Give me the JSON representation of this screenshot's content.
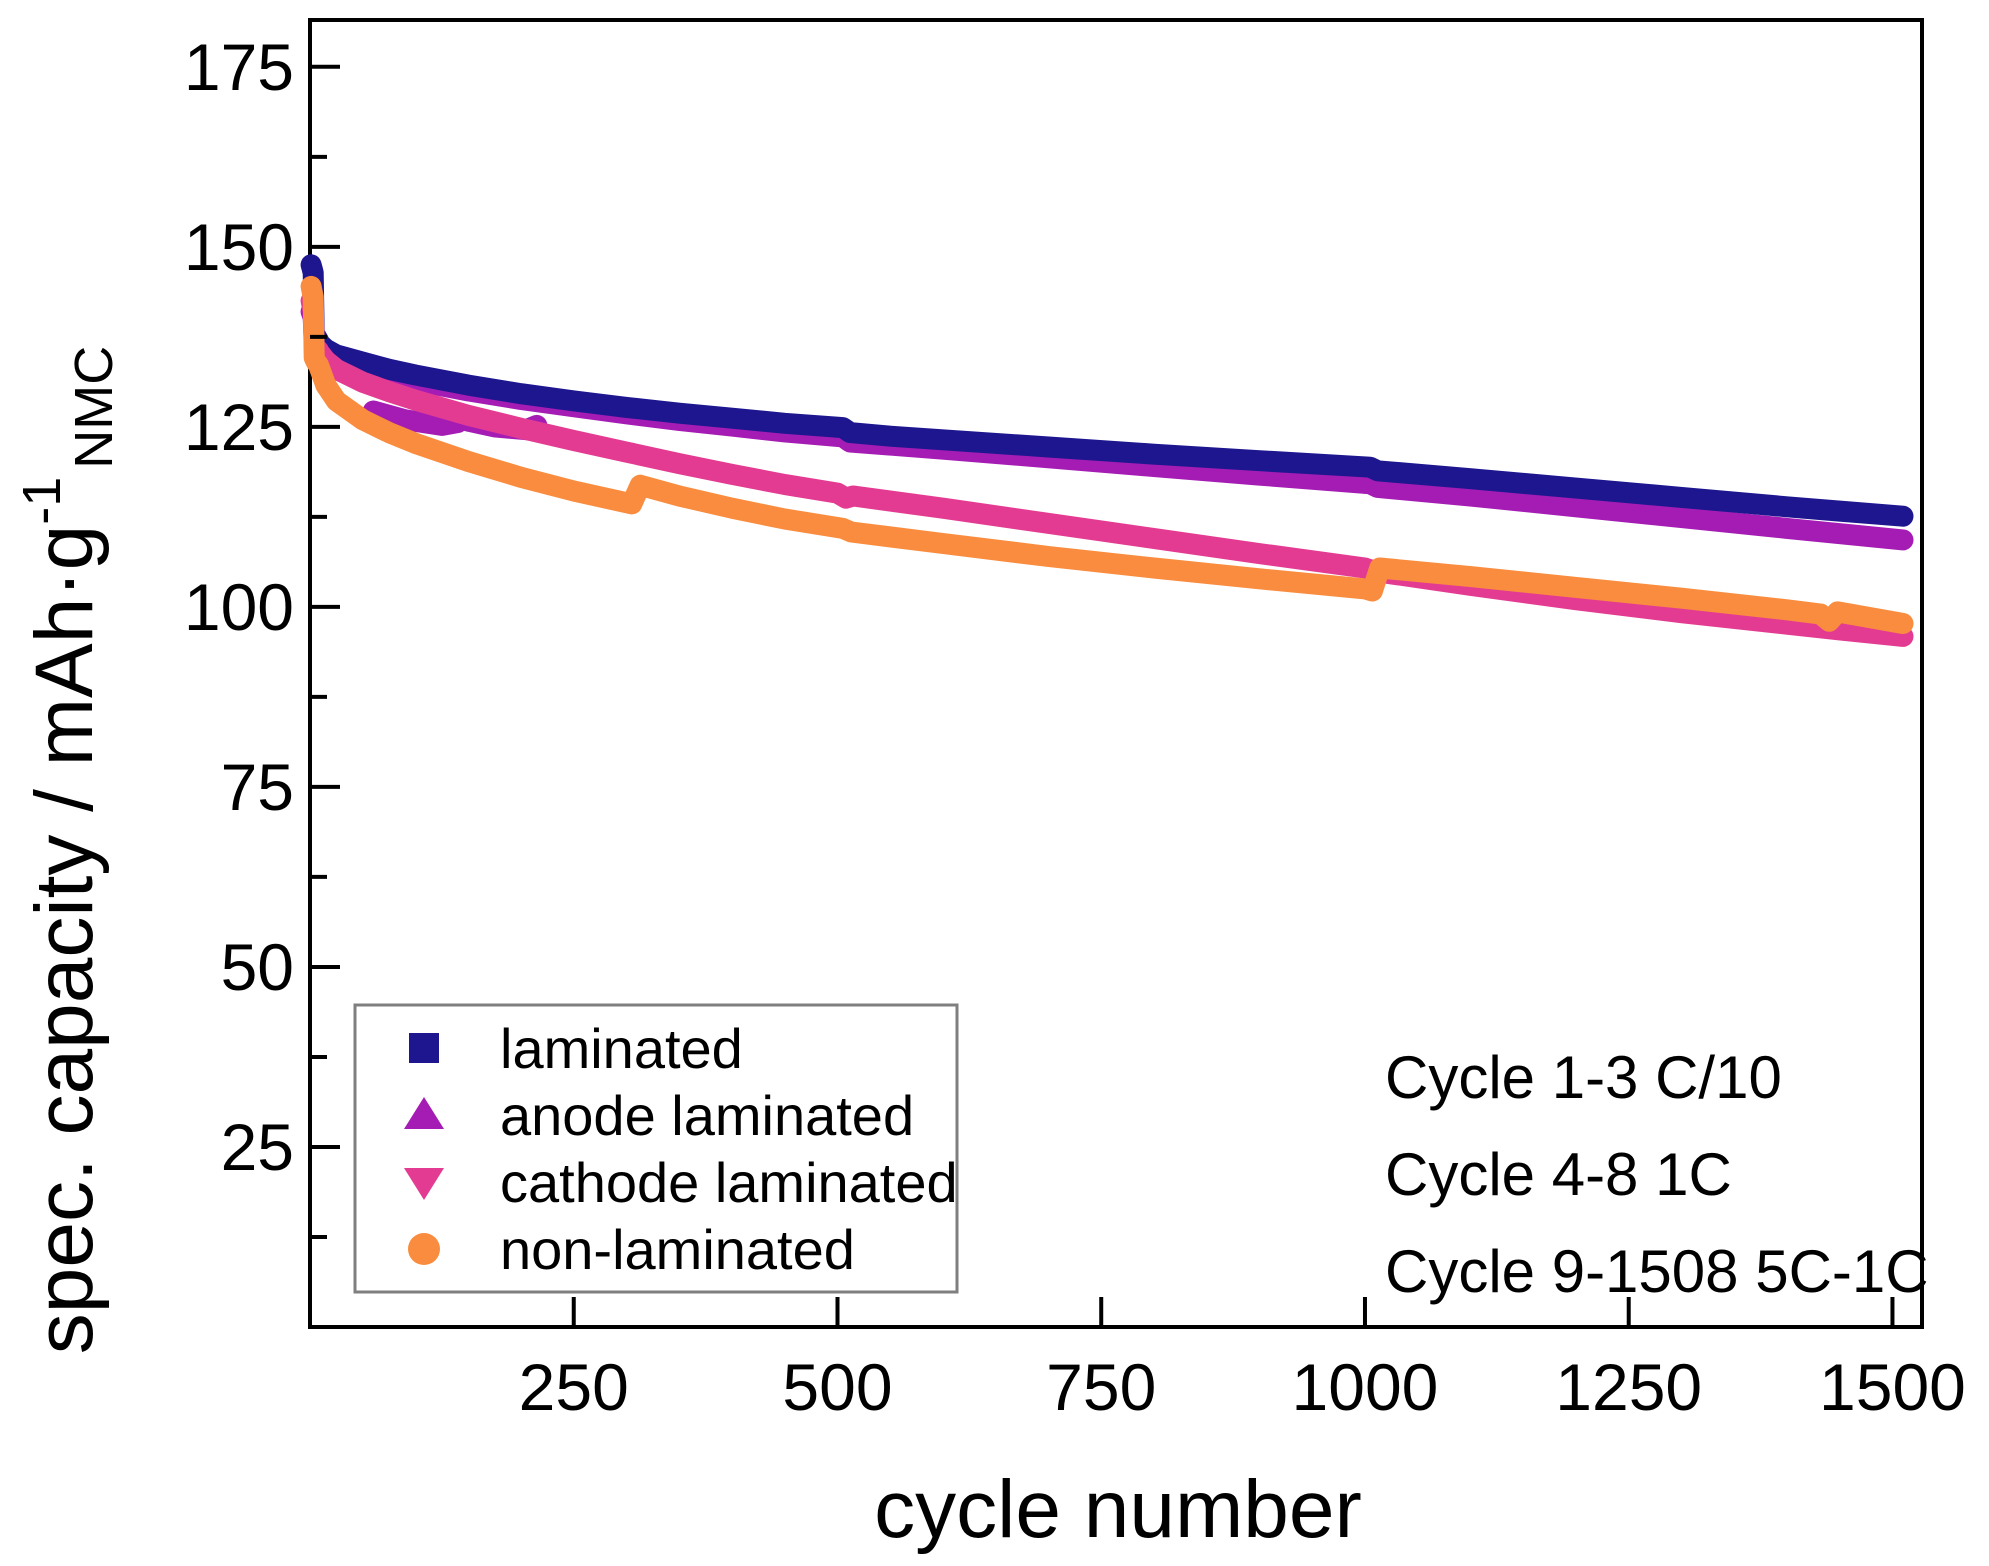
{
  "chart_data": {
    "type": "scatter",
    "title": "",
    "xlabel": "cycle number",
    "ylabel": "spec. capacity / mAh·g⁻¹ NMC",
    "ylabel_main": "spec. capacity / mAh·g",
    "ylabel_sup": "-1",
    "ylabel_sub": "NMC",
    "xlim": [
      0,
      1528
    ],
    "ylim": [
      0,
      181.5
    ],
    "x_ticks": [
      250,
      500,
      750,
      1000,
      1250,
      1500
    ],
    "y_ticks": [
      25,
      50,
      75,
      100,
      125,
      150,
      175
    ],
    "y_minor_tick_step": 12.5,
    "grid": "off",
    "legend_position": "bottom-left",
    "annotations": [
      "Cycle 1-3 C/10",
      "Cycle 4-8 1C",
      "Cycle 9-1508 5C-1C"
    ],
    "axis_color": "#000000",
    "legend_border_color": "#7f7f7f",
    "series": [
      {
        "name": "laminated",
        "marker": "square",
        "color": "#1e168f",
        "points": [
          [
            1,
            147.5
          ],
          [
            2,
            147
          ],
          [
            3,
            146.4
          ],
          [
            4,
            138
          ],
          [
            6,
            137.5
          ],
          [
            8,
            137
          ],
          [
            9,
            136.6
          ],
          [
            15,
            135.8
          ],
          [
            25,
            135
          ],
          [
            50,
            134
          ],
          [
            75,
            133
          ],
          [
            100,
            132.2
          ],
          [
            150,
            130.8
          ],
          [
            200,
            129.6
          ],
          [
            250,
            128.6
          ],
          [
            300,
            127.7
          ],
          [
            350,
            126.9
          ],
          [
            400,
            126.2
          ],
          [
            450,
            125.5
          ],
          [
            505,
            124.9
          ],
          [
            512,
            124.2
          ],
          [
            550,
            123.7
          ],
          [
            600,
            123.2
          ],
          [
            700,
            122.2
          ],
          [
            800,
            121.2
          ],
          [
            900,
            120.3
          ],
          [
            1005,
            119.4
          ],
          [
            1012,
            118.9
          ],
          [
            1100,
            117.8
          ],
          [
            1200,
            116.5
          ],
          [
            1300,
            115.2
          ],
          [
            1400,
            113.9
          ],
          [
            1450,
            113.3
          ],
          [
            1510,
            112.6
          ]
        ]
      },
      {
        "name": "anode laminated",
        "marker": "triangle-up",
        "color": "#a51cb4",
        "points": [
          [
            1,
            141
          ],
          [
            2,
            140.6
          ],
          [
            3,
            140.2
          ],
          [
            4,
            137
          ],
          [
            6,
            136.5
          ],
          [
            8,
            136.1
          ],
          [
            9,
            135.8
          ],
          [
            15,
            135.2
          ],
          [
            25,
            134.4
          ],
          [
            50,
            133.3
          ],
          [
            75,
            132.3
          ],
          [
            100,
            131.4
          ],
          [
            150,
            130
          ],
          [
            200,
            128.8
          ],
          [
            250,
            127.8
          ],
          [
            300,
            126.8
          ],
          [
            350,
            125.9
          ],
          [
            400,
            125.1
          ],
          [
            450,
            124.3
          ],
          [
            505,
            123.6
          ],
          [
            512,
            122.9
          ],
          [
            600,
            121.9
          ],
          [
            700,
            120.7
          ],
          [
            800,
            119.5
          ],
          [
            900,
            118.3
          ],
          [
            1005,
            117.1
          ],
          [
            1012,
            116.6
          ],
          [
            1100,
            115.4
          ],
          [
            1200,
            113.9
          ],
          [
            1300,
            112.4
          ],
          [
            1400,
            110.9
          ],
          [
            1510,
            109.3
          ]
        ],
        "extra_segments": [
          [
            [
              60,
              127.2
            ],
            [
              90,
              126
            ],
            [
              125,
              125.2
            ],
            [
              140,
              125.6
            ]
          ],
          [
            [
              150,
              125.8
            ],
            [
              175,
              125
            ],
            [
              205,
              124.6
            ],
            [
              215,
              125.2
            ]
          ]
        ]
      },
      {
        "name": "cathode laminated",
        "marker": "triangle-down",
        "color": "#e43b92",
        "points": [
          [
            1,
            142.5
          ],
          [
            2,
            141.8
          ],
          [
            3,
            141
          ],
          [
            4,
            136.3
          ],
          [
            6,
            135.9
          ],
          [
            8,
            135.6
          ],
          [
            9,
            135.3
          ],
          [
            15,
            134.2
          ],
          [
            25,
            133
          ],
          [
            50,
            131.2
          ],
          [
            75,
            129.9
          ],
          [
            100,
            128.7
          ],
          [
            150,
            126.6
          ],
          [
            200,
            124.8
          ],
          [
            250,
            123.1
          ],
          [
            300,
            121.5
          ],
          [
            350,
            119.9
          ],
          [
            400,
            118.4
          ],
          [
            450,
            117
          ],
          [
            500,
            115.8
          ],
          [
            508,
            115.1
          ],
          [
            515,
            115.4
          ],
          [
            600,
            113.7
          ],
          [
            700,
            111.6
          ],
          [
            800,
            109.5
          ],
          [
            900,
            107.4
          ],
          [
            1000,
            105.4
          ],
          [
            1010,
            104.9
          ],
          [
            1100,
            103
          ],
          [
            1200,
            101
          ],
          [
            1300,
            99.2
          ],
          [
            1400,
            97.6
          ],
          [
            1450,
            96.8
          ],
          [
            1510,
            95.9
          ]
        ]
      },
      {
        "name": "non-laminated",
        "marker": "circle",
        "color": "#f98c3e",
        "points": [
          [
            1,
            144.5
          ],
          [
            2,
            143.8
          ],
          [
            3,
            143
          ],
          [
            4,
            134.6
          ],
          [
            6,
            134
          ],
          [
            8,
            133.6
          ],
          [
            9,
            133.2
          ],
          [
            15,
            130.8
          ],
          [
            25,
            128.6
          ],
          [
            50,
            126
          ],
          [
            75,
            124.2
          ],
          [
            100,
            122.7
          ],
          [
            150,
            120.2
          ],
          [
            200,
            118
          ],
          [
            250,
            116.1
          ],
          [
            305,
            114.3
          ],
          [
            313,
            116.9
          ],
          [
            350,
            115.4
          ],
          [
            400,
            113.7
          ],
          [
            450,
            112.2
          ],
          [
            505,
            110.9
          ],
          [
            513,
            110.4
          ],
          [
            600,
            108.8
          ],
          [
            700,
            107
          ],
          [
            800,
            105.4
          ],
          [
            900,
            103.9
          ],
          [
            1000,
            102.5
          ],
          [
            1007,
            102.2
          ],
          [
            1014,
            105.4
          ],
          [
            1100,
            104.2
          ],
          [
            1200,
            102.7
          ],
          [
            1300,
            101.2
          ],
          [
            1400,
            99.6
          ],
          [
            1432,
            99
          ],
          [
            1440,
            98
          ],
          [
            1448,
            99.3
          ],
          [
            1510,
            97.7
          ]
        ]
      }
    ]
  }
}
